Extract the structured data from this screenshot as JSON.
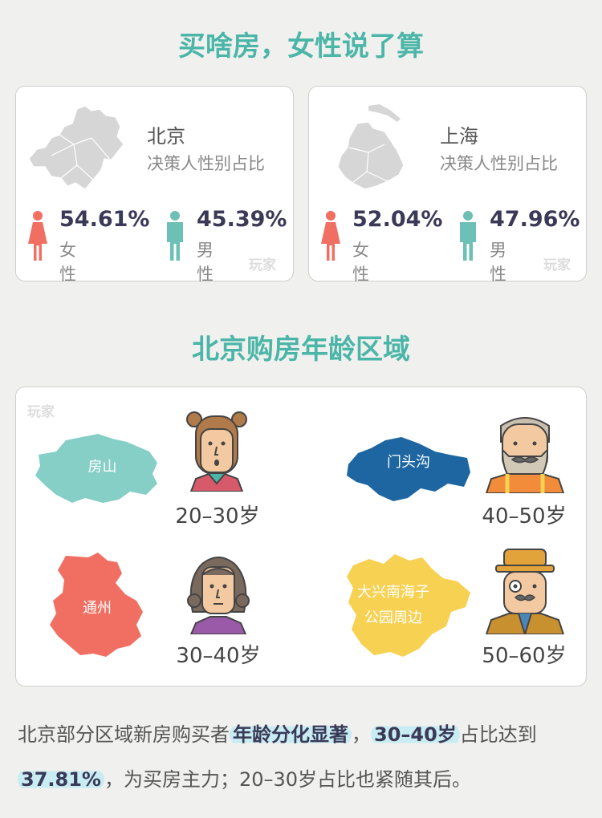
{
  "title1": "买啥房，女性说了算",
  "title2": "北京购房年龄区域",
  "watermark": "玩家",
  "cities": [
    {
      "name": "北京",
      "subtitle": "决策人性别占比",
      "female_pct": "54.61%",
      "female_label": "女性",
      "male_pct": "45.39%",
      "male_label": "男性"
    },
    {
      "name": "上海",
      "subtitle": "决策人性别占比",
      "female_pct": "52.04%",
      "female_label": "女性",
      "male_pct": "47.96%",
      "male_label": "男性"
    }
  ],
  "regions": [
    {
      "name": "房山",
      "age": "20–30岁",
      "color": "#86cfc6"
    },
    {
      "name": "门头沟",
      "age": "40–50岁",
      "color": "#1d66a1"
    },
    {
      "name": "通州",
      "age": "30–40岁",
      "color": "#f06f62"
    },
    {
      "name_line1": "大兴南海子",
      "name_line2": "公园周边",
      "age": "50–60岁",
      "color": "#f7d152"
    }
  ],
  "summary": {
    "p1": "北京部分区域新房购买者",
    "h1": "年龄分化显著",
    "p2": "，",
    "h2": "30–40岁",
    "p3": "占比达到",
    "h3": "37.81%",
    "p4": "，为买房主力；20–30岁占比也紧随其后。"
  },
  "colors": {
    "title": "#4bb6a8",
    "female": "#f06f62",
    "male": "#6cc0b5",
    "highlight": "#c8ecf2"
  }
}
